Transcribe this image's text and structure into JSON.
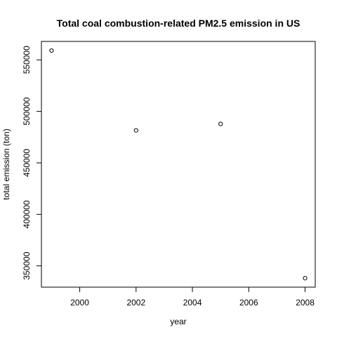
{
  "chart_data": {
    "type": "scatter",
    "title": "Total coal combustion-related PM2.5 emission in US",
    "xlabel": "year",
    "ylabel": "total emission (ton)",
    "x": [
      1999,
      2002,
      2005,
      2008
    ],
    "y": [
      559000,
      481500,
      487800,
      338000
    ],
    "xlim": [
      1998.64,
      2008.36
    ],
    "ylim": [
      329300,
      567900
    ],
    "xticks": [
      2000,
      2002,
      2004,
      2006,
      2008
    ],
    "yticks": [
      350000,
      400000,
      450000,
      500000,
      550000
    ],
    "xtick_labels": [
      "2000",
      "2002",
      "2004",
      "2006",
      "2008"
    ],
    "ytick_labels": [
      "350000",
      "400000",
      "450000",
      "500000",
      "550000"
    ],
    "grid": false,
    "legend": "none",
    "marker": "open-circle",
    "colors": {
      "ink": "#000000",
      "background": "#ffffff"
    }
  }
}
